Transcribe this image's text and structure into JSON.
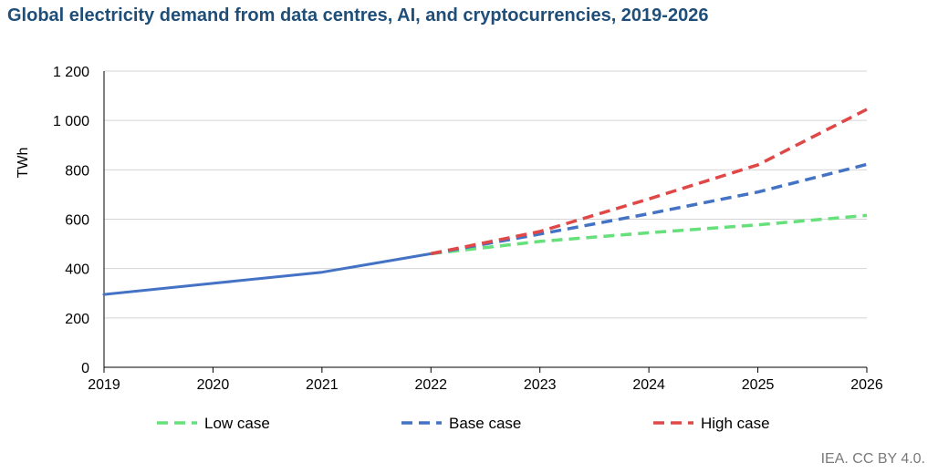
{
  "title": "Global electricity demand from data centres, AI, and cryptocurrencies, 2019-2026",
  "source": "IEA. CC BY 4.0.",
  "chart_data": {
    "type": "line",
    "title": "Global electricity demand from data centres, AI, and cryptocurrencies, 2019-2026",
    "xlabel": "",
    "ylabel": "TWh",
    "ylim": [
      0,
      1200
    ],
    "yticks": [
      0,
      200,
      400,
      600,
      800,
      1000,
      1200
    ],
    "ytick_labels": [
      "0",
      "200",
      "400",
      "600",
      "800",
      "1 000",
      "1 200"
    ],
    "x": [
      "2019",
      "2020",
      "2021",
      "2022",
      "2023",
      "2024",
      "2025",
      "2026"
    ],
    "grid": true,
    "legend_position": "bottom",
    "historical": {
      "x": [
        "2019",
        "2020",
        "2021",
        "2022"
      ],
      "values": [
        295,
        340,
        385,
        460
      ],
      "color": "#4472c4"
    },
    "series": [
      {
        "name": "Low case",
        "x": [
          "2022",
          "2023",
          "2024",
          "2025",
          "2026"
        ],
        "values": [
          460,
          510,
          545,
          577,
          615
        ],
        "color": "#66e07a",
        "style": "dashed"
      },
      {
        "name": "Base case",
        "x": [
          "2022",
          "2023",
          "2024",
          "2025",
          "2026"
        ],
        "values": [
          460,
          540,
          622,
          710,
          822
        ],
        "color": "#4472c4",
        "style": "dashed"
      },
      {
        "name": "High case",
        "x": [
          "2022",
          "2023",
          "2024",
          "2025",
          "2026"
        ],
        "values": [
          460,
          550,
          682,
          820,
          1045
        ],
        "color": "#e04848",
        "style": "dashed"
      }
    ]
  }
}
